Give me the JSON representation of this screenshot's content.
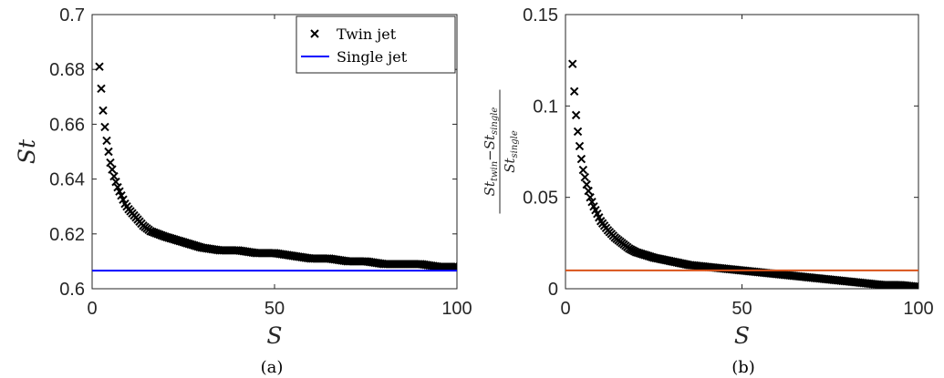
{
  "chart_data": [
    {
      "id": "a",
      "type": "scatter",
      "caption": "(a)",
      "xlabel": "S",
      "ylabel": "St",
      "xlim": [
        0,
        100
      ],
      "ylim": [
        0.6,
        0.7
      ],
      "xticks": [
        0,
        50,
        100
      ],
      "yticks": [
        0.6,
        0.62,
        0.64,
        0.66,
        0.68,
        0.7
      ],
      "xtick_labels": [
        "0",
        "50",
        "100"
      ],
      "ytick_labels": [
        "0.6",
        "0.62",
        "0.64",
        "0.66",
        "0.68",
        "0.7"
      ],
      "legend": {
        "placement": "top-right",
        "entries": [
          "Twin jet",
          "Single jet"
        ]
      },
      "series": [
        {
          "name": "Twin jet",
          "marker": "x",
          "color": "#000000",
          "x": [
            2,
            2.25,
            2.5,
            2.75,
            3,
            3.5,
            4,
            4.5,
            5,
            6,
            7,
            8,
            9,
            10,
            12,
            14,
            16,
            18,
            20,
            25,
            30,
            35,
            40,
            45,
            50,
            55,
            60,
            65,
            70,
            75,
            80,
            85,
            90,
            95,
            100
          ],
          "y": [
            0.681,
            0.677,
            0.673,
            0.669,
            0.665,
            0.659,
            0.654,
            0.65,
            0.646,
            0.641,
            0.637,
            0.634,
            0.631,
            0.629,
            0.626,
            0.623,
            0.621,
            0.62,
            0.619,
            0.617,
            0.615,
            0.614,
            0.614,
            0.613,
            0.613,
            0.612,
            0.611,
            0.611,
            0.61,
            0.61,
            0.609,
            0.609,
            0.609,
            0.608,
            0.608
          ]
        },
        {
          "name": "Single jet",
          "type": "line",
          "color": "#0000ff",
          "x": [
            0,
            100
          ],
          "y": [
            0.6066,
            0.6066
          ]
        }
      ]
    },
    {
      "id": "b",
      "type": "scatter",
      "caption": "(b)",
      "xlabel": "S",
      "ylabel": "(St_twin - St_single) / St_single",
      "ylabel_parts": {
        "num_a": "St",
        "num_a_sub": "twin",
        "num_b": "St",
        "num_b_sub": "single",
        "den": "St",
        "den_sub": "single"
      },
      "xlim": [
        0,
        100
      ],
      "ylim": [
        0,
        0.15
      ],
      "xticks": [
        0,
        50,
        100
      ],
      "yticks": [
        0,
        0.05,
        0.1,
        0.15
      ],
      "xtick_labels": [
        "0",
        "50",
        "100"
      ],
      "ytick_labels": [
        "0",
        "0.05",
        "0.1",
        "0.15"
      ],
      "series": [
        {
          "marker": "x",
          "color": "#000000",
          "x": [
            2,
            2.25,
            2.5,
            2.75,
            3,
            3.5,
            4,
            4.5,
            5,
            6,
            7,
            8,
            9,
            10,
            12,
            14,
            16,
            18,
            20,
            25,
            30,
            35,
            40,
            45,
            50,
            55,
            60,
            65,
            70,
            75,
            80,
            85,
            90,
            95,
            100
          ],
          "y": [
            0.123,
            0.115,
            0.108,
            0.101,
            0.095,
            0.086,
            0.078,
            0.071,
            0.065,
            0.057,
            0.05,
            0.045,
            0.041,
            0.037,
            0.032,
            0.028,
            0.025,
            0.022,
            0.02,
            0.017,
            0.015,
            0.013,
            0.012,
            0.011,
            0.01,
            0.009,
            0.008,
            0.007,
            0.006,
            0.005,
            0.004,
            0.003,
            0.002,
            0.002,
            0.001
          ]
        },
        {
          "type": "line",
          "color": "#d95319",
          "x": [
            0,
            100
          ],
          "y": [
            0.01,
            0.01
          ]
        }
      ]
    }
  ]
}
